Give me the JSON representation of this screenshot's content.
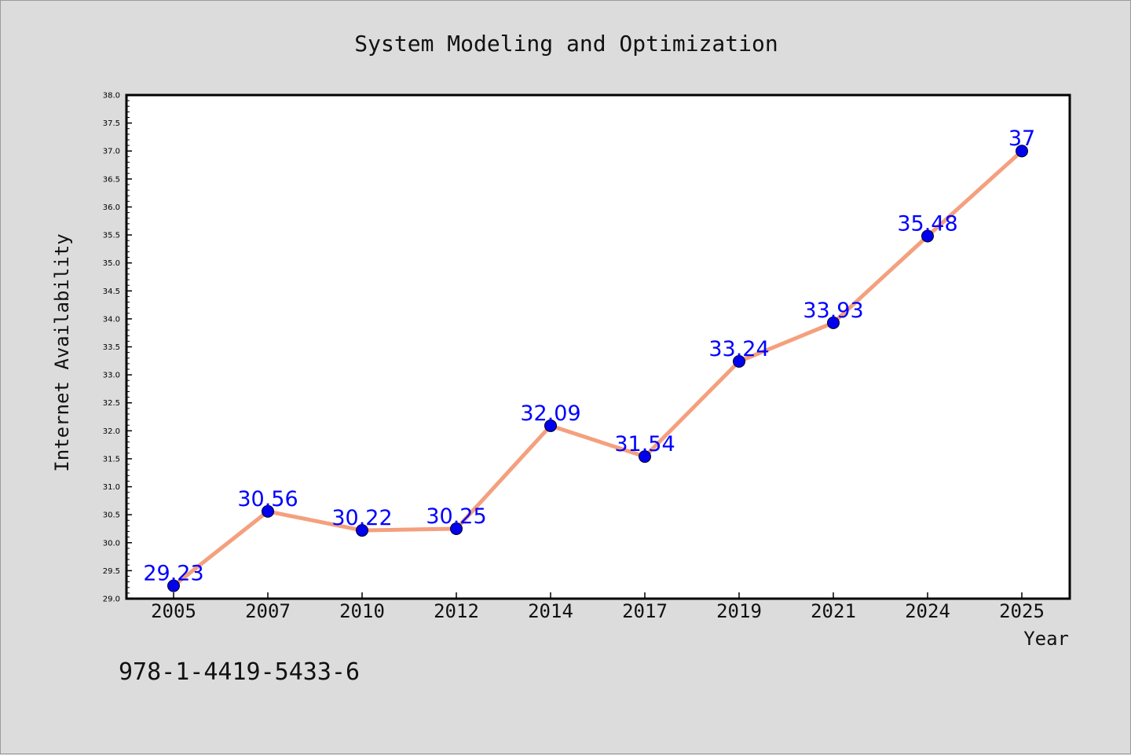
{
  "chart_data": {
    "type": "line",
    "title": "System Modeling and Optimization",
    "xlabel": "Year",
    "ylabel": "Internet Availability",
    "categories": [
      "2005",
      "2007",
      "2010",
      "2012",
      "2014",
      "2017",
      "2019",
      "2021",
      "2024",
      "2025"
    ],
    "series": [
      {
        "values": [
          29.23,
          30.56,
          30.22,
          30.25,
          32.09,
          31.54,
          33.24,
          33.93,
          35.48,
          37
        ]
      }
    ],
    "data_labels": [
      "29.23",
      "30.56",
      "30.22",
      "30.25",
      "32.09",
      "31.54",
      "33.24",
      "33.93",
      "35.48",
      "37"
    ],
    "ylim": [
      29.0,
      38.0
    ],
    "yticks": [
      "29.0",
      "29.5",
      "30.0",
      "30.5",
      "31.0",
      "31.5",
      "32.0",
      "32.5",
      "33.0",
      "33.5",
      "34.0",
      "34.5",
      "35.0",
      "35.5",
      "36.0",
      "36.5",
      "37.0",
      "37.5",
      "38.0"
    ],
    "grid": false,
    "legend": "none",
    "colors": {
      "line": "#f4a07e",
      "marker": "#0000ee",
      "label": "#0000ff",
      "background": "#dcdcdc",
      "plot_background": "#ffffff"
    }
  },
  "footer": {
    "isbn": "978-1-4419-5433-6"
  }
}
